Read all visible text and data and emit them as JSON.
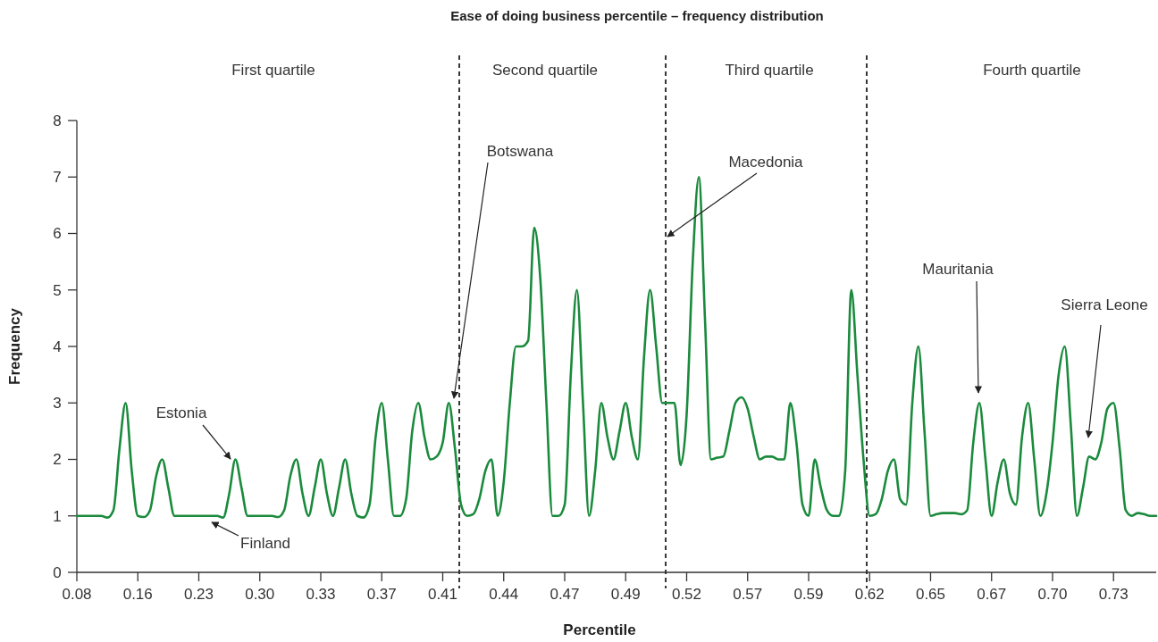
{
  "chart_data": {
    "type": "line",
    "title": "Ease of doing business percentile – frequency distribution",
    "xlabel": "Percentile",
    "ylabel": "Frequency",
    "categories": [
      "0.08",
      null,
      null,
      null,
      null,
      null,
      null,
      null,
      null,
      null,
      "0.16",
      null,
      null,
      null,
      null,
      null,
      null,
      null,
      null,
      null,
      "0.23",
      null,
      null,
      null,
      null,
      null,
      null,
      null,
      null,
      null,
      "0.30",
      null,
      null,
      null,
      null,
      null,
      null,
      null,
      null,
      null,
      "0.33",
      null,
      null,
      null,
      null,
      null,
      null,
      null,
      null,
      null,
      "0.37",
      null,
      null,
      null,
      null,
      null,
      null,
      null,
      null,
      null,
      "0.41",
      null,
      null,
      null,
      null,
      null,
      null,
      null,
      null,
      null,
      "0.44",
      null,
      null,
      null,
      null,
      null,
      null,
      null,
      null,
      null,
      "0.47",
      null,
      null,
      null,
      null,
      null,
      null,
      null,
      null,
      null,
      "0.49",
      null,
      null,
      null,
      null,
      null,
      null,
      null,
      null,
      null,
      "0.52",
      null,
      null,
      null,
      null,
      null,
      null,
      null,
      null,
      null,
      "0.57",
      null,
      null,
      null,
      null,
      null,
      null,
      null,
      null,
      null,
      "0.59",
      null,
      null,
      null,
      null,
      null,
      null,
      null,
      null,
      null,
      "0.62",
      null,
      null,
      null,
      null,
      null,
      null,
      null,
      null,
      null,
      "0.65",
      null,
      null,
      null,
      null,
      null,
      null,
      null,
      null,
      null,
      "0.67",
      null,
      null,
      null,
      null,
      null,
      null,
      null,
      null,
      null,
      "0.70",
      null,
      null,
      null,
      null,
      null,
      null,
      null,
      null,
      null,
      "0.73",
      null,
      null,
      null,
      null,
      null,
      null,
      null
    ],
    "series": [
      {
        "color": "#1a8a3c",
        "values": [
          1,
          1,
          1,
          1,
          1,
          0.97,
          1.1,
          2.2,
          3,
          1.8,
          1,
          0.98,
          1.1,
          1.7,
          2,
          1.5,
          1,
          1,
          1,
          1,
          1,
          1,
          1,
          1,
          0.97,
          1.4,
          2,
          1.5,
          1,
          1,
          1,
          1,
          1,
          0.98,
          1.1,
          1.7,
          2,
          1.4,
          1,
          1.5,
          2,
          1.4,
          1,
          1.5,
          2,
          1.4,
          1,
          0.97,
          1.2,
          2.4,
          3,
          2,
          1,
          1,
          1.3,
          2.5,
          3,
          2.4,
          2,
          2.05,
          2.3,
          3,
          2.2,
          1.2,
          1,
          1.03,
          1.3,
          1.8,
          2,
          1,
          1.6,
          3,
          4,
          4,
          4.1,
          6.1,
          5.2,
          3,
          1,
          1,
          1.2,
          3.5,
          5,
          3,
          1,
          1.8,
          3,
          2.4,
          2,
          2.5,
          3,
          2.4,
          2,
          3.8,
          5,
          4,
          3,
          3,
          3,
          1.9,
          2.8,
          5.5,
          7,
          4.5,
          2,
          2.03,
          2.05,
          2.5,
          3,
          3.1,
          2.9,
          2.4,
          2,
          2.05,
          2.05,
          2,
          2,
          3,
          2.3,
          1.2,
          1,
          2,
          1.5,
          1.1,
          1,
          1,
          1.8,
          5,
          3.5,
          2,
          1,
          1.03,
          1.3,
          1.8,
          2,
          1.3,
          1.2,
          3,
          4,
          2.5,
          1,
          1.03,
          1.05,
          1.05,
          1.05,
          1.03,
          1.1,
          2.3,
          3,
          2,
          1,
          1.6,
          2,
          1.4,
          1.2,
          2.4,
          3,
          2,
          1,
          1.4,
          2.3,
          3.5,
          4,
          2.6,
          1,
          1.5,
          2.05,
          2,
          2.3,
          2.9,
          3,
          2.2,
          1.1,
          1,
          1.05,
          1.03,
          1,
          1
        ]
      }
    ],
    "ylim": [
      0,
      8
    ],
    "yticks": [
      0,
      1,
      2,
      3,
      4,
      5,
      6,
      7,
      8
    ],
    "marker": "none",
    "line_style": "solid",
    "annotations": [
      "First quartile",
      "Second  quartile",
      "Third quartile",
      "Fourth quartile",
      "Estonia",
      "Finland",
      "Botswana",
      "Macedonia",
      "Mauritania",
      "Sierra Leone"
    ]
  }
}
